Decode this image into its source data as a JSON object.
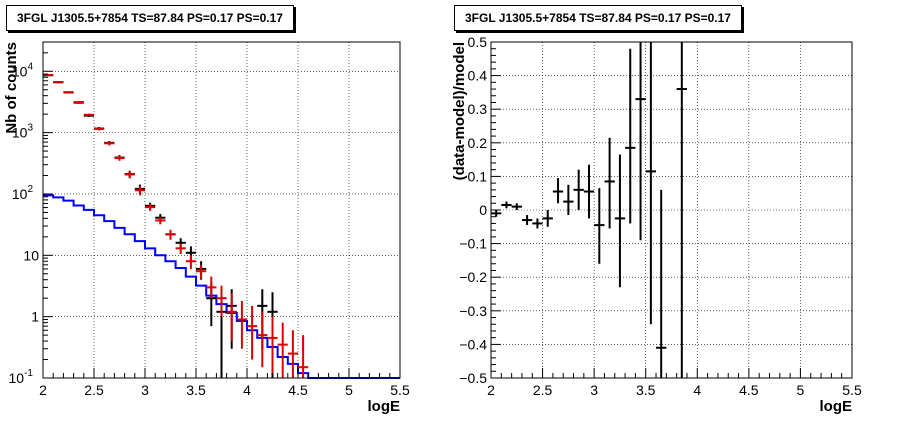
{
  "chart_data": [
    {
      "type": "line",
      "title": "3FGL J1305.5+7854 TS=87.84 PS=0.17 PS=0.17",
      "xlabel": "logE",
      "ylabel": "Nb of counts",
      "xlim": [
        2,
        5.5
      ],
      "ylim": [
        0.1,
        30000
      ],
      "yscale": "log",
      "grid": true,
      "x_ticks": [
        "2",
        "2.5",
        "3",
        "3.5",
        "4",
        "4.5",
        "5",
        "5.5"
      ],
      "y_ticks": [
        {
          "value": 0.1,
          "label": "10",
          "exp": "-1"
        },
        {
          "value": 1,
          "label": "1",
          "exp": ""
        },
        {
          "value": 10,
          "label": "10",
          "exp": ""
        },
        {
          "value": 100,
          "label": "10",
          "exp": "2"
        },
        {
          "value": 1000,
          "label": "10",
          "exp": "3"
        },
        {
          "value": 10000,
          "label": "10",
          "exp": "4"
        }
      ],
      "bin_edges": [
        2.0,
        2.1,
        2.2,
        2.3,
        2.4,
        2.5,
        2.6,
        2.7,
        2.8,
        2.9,
        3.0,
        3.1,
        3.2,
        3.3,
        3.4,
        3.5,
        3.6,
        3.7,
        3.8,
        3.9,
        4.0,
        4.1,
        4.2,
        4.3,
        4.4,
        4.5,
        4.6,
        4.7,
        4.8,
        4.9,
        5.0,
        5.1,
        5.2,
        5.3,
        5.4,
        5.5
      ],
      "series": [
        {
          "style": "step",
          "color": "#0000ff",
          "values": [
            95,
            88,
            78,
            65,
            55,
            45,
            36,
            28,
            22,
            17,
            13,
            10,
            8,
            6.2,
            4.5,
            3.2,
            2.2,
            1.6,
            1.15,
            0.85,
            0.6,
            0.45,
            0.32,
            0.22,
            0.17,
            0.12,
            0.1,
            0.1,
            0.1,
            0.1,
            0.1,
            0.1,
            0.1,
            0.1,
            0.1
          ]
        },
        {
          "style": "errorbar",
          "color": "#000000",
          "points": [
            {
              "x": 2.05,
              "y": 8600,
              "lo": 8410,
              "hi": 8790
            },
            {
              "x": 2.15,
              "y": 6650,
              "lo": 6480,
              "hi": 6820
            },
            {
              "x": 2.25,
              "y": 4550,
              "lo": 4410,
              "hi": 4690
            },
            {
              "x": 2.35,
              "y": 3080,
              "lo": 2970,
              "hi": 3190
            },
            {
              "x": 2.45,
              "y": 1890,
              "lo": 1800,
              "hi": 1980
            },
            {
              "x": 2.55,
              "y": 1165,
              "lo": 1095,
              "hi": 1235
            },
            {
              "x": 2.65,
              "y": 681,
              "lo": 630,
              "hi": 732
            },
            {
              "x": 2.75,
              "y": 392,
              "lo": 353,
              "hi": 431
            },
            {
              "x": 2.85,
              "y": 211,
              "lo": 183,
              "hi": 239
            },
            {
              "x": 2.95,
              "y": 121,
              "lo": 100,
              "hi": 142
            },
            {
              "x": 3.05,
              "y": 64,
              "lo": 56,
              "hi": 72
            },
            {
              "x": 3.15,
              "y": 41,
              "lo": 35,
              "hi": 47
            },
            {
              "x": 3.25,
              "y": 22,
              "lo": 18,
              "hi": 26
            },
            {
              "x": 3.35,
              "y": 16,
              "lo": 13,
              "hi": 19
            },
            {
              "x": 3.45,
              "y": 11,
              "lo": 8,
              "hi": 14
            },
            {
              "x": 3.55,
              "y": 6,
              "lo": 4,
              "hi": 8
            },
            {
              "x": 3.65,
              "y": 2,
              "lo": 0.7,
              "hi": 3.4
            },
            {
              "x": 3.75,
              "y": 1.2,
              "lo": 0.1,
              "hi": 2.5
            },
            {
              "x": 3.85,
              "y": 1.5,
              "lo": 0.3,
              "hi": 2.8
            },
            {
              "x": 4.15,
              "y": 1.5,
              "lo": 0.3,
              "hi": 2.8
            },
            {
              "x": 4.25,
              "y": 1.2,
              "lo": 0.1,
              "hi": 2.5
            }
          ]
        },
        {
          "style": "errorbar",
          "color": "#dd0000",
          "points": [
            {
              "x": 2.05,
              "y": 8700,
              "lo": 8520,
              "hi": 8880
            },
            {
              "x": 2.15,
              "y": 6600,
              "lo": 6440,
              "hi": 6760
            },
            {
              "x": 2.25,
              "y": 4500,
              "lo": 4370,
              "hi": 4630
            },
            {
              "x": 2.35,
              "y": 3150,
              "lo": 3040,
              "hi": 3260
            },
            {
              "x": 2.45,
              "y": 1950,
              "lo": 1860,
              "hi": 2040
            },
            {
              "x": 2.55,
              "y": 1150,
              "lo": 1080,
              "hi": 1220
            },
            {
              "x": 2.65,
              "y": 670,
              "lo": 620,
              "hi": 720
            },
            {
              "x": 2.75,
              "y": 385,
              "lo": 347,
              "hi": 423
            },
            {
              "x": 2.85,
              "y": 208,
              "lo": 180,
              "hi": 236
            },
            {
              "x": 2.95,
              "y": 115,
              "lo": 95,
              "hi": 135
            },
            {
              "x": 3.05,
              "y": 61,
              "lo": 53,
              "hi": 69
            },
            {
              "x": 3.15,
              "y": 37,
              "lo": 32,
              "hi": 42
            },
            {
              "x": 3.25,
              "y": 22,
              "lo": 18,
              "hi": 26
            },
            {
              "x": 3.35,
              "y": 13,
              "lo": 10.5,
              "hi": 15.5
            },
            {
              "x": 3.45,
              "y": 8,
              "lo": 6,
              "hi": 10
            },
            {
              "x": 3.55,
              "y": 5.5,
              "lo": 4,
              "hi": 7
            },
            {
              "x": 3.65,
              "y": 3,
              "lo": 2,
              "hi": 4.5
            },
            {
              "x": 3.75,
              "y": 2,
              "lo": 1,
              "hi": 3.2
            },
            {
              "x": 3.85,
              "y": 1.2,
              "lo": 0.4,
              "hi": 2.4
            },
            {
              "x": 3.95,
              "y": 0.9,
              "lo": 0.3,
              "hi": 1.8
            },
            {
              "x": 4.05,
              "y": 0.7,
              "lo": 0.2,
              "hi": 1.5
            },
            {
              "x": 4.15,
              "y": 0.5,
              "lo": 0.15,
              "hi": 1.2
            },
            {
              "x": 4.25,
              "y": 0.45,
              "lo": 0.12,
              "hi": 1.0
            },
            {
              "x": 4.35,
              "y": 0.35,
              "lo": 0.1,
              "hi": 0.8
            },
            {
              "x": 4.45,
              "y": 0.25,
              "lo": 0.1,
              "hi": 0.6
            },
            {
              "x": 4.55,
              "y": 0.15,
              "lo": 0.1,
              "hi": 0.5
            }
          ]
        }
      ]
    },
    {
      "type": "scatter",
      "title": "3FGL J1305.5+7854 TS=87.84 PS=0.17 PS=0.17",
      "xlabel": "logE",
      "ylabel": "(data-model)/model",
      "xlim": [
        2,
        5.5
      ],
      "ylim": [
        -0.5,
        0.5
      ],
      "grid": true,
      "x_ticks": [
        "2",
        "2.5",
        "3",
        "3.5",
        "4",
        "4.5",
        "5",
        "5.5"
      ],
      "y_ticks": [
        "−0.5",
        "−0.4",
        "−0.3",
        "−0.2",
        "−0.1",
        "0",
        "0.1",
        "0.2",
        "0.3",
        "0.4",
        "0.5"
      ],
      "series": [
        {
          "style": "errorbar",
          "color": "#000000",
          "points": [
            {
              "x": 2.05,
              "y": -0.01,
              "lo": -0.02,
              "hi": 0.0
            },
            {
              "x": 2.15,
              "y": 0.015,
              "lo": 0.005,
              "hi": 0.025
            },
            {
              "x": 2.25,
              "y": 0.01,
              "lo": 0.0,
              "hi": 0.02
            },
            {
              "x": 2.35,
              "y": -0.03,
              "lo": -0.045,
              "hi": -0.015
            },
            {
              "x": 2.45,
              "y": -0.04,
              "lo": -0.055,
              "hi": -0.025
            },
            {
              "x": 2.55,
              "y": -0.025,
              "lo": -0.05,
              "hi": 0.0
            },
            {
              "x": 2.65,
              "y": 0.055,
              "lo": 0.02,
              "hi": 0.095
            },
            {
              "x": 2.75,
              "y": 0.025,
              "lo": -0.015,
              "hi": 0.075
            },
            {
              "x": 2.85,
              "y": 0.06,
              "lo": 0.0,
              "hi": 0.12
            },
            {
              "x": 2.95,
              "y": 0.055,
              "lo": -0.025,
              "hi": 0.135
            },
            {
              "x": 3.05,
              "y": -0.045,
              "lo": -0.16,
              "hi": 0.065
            },
            {
              "x": 3.15,
              "y": 0.085,
              "lo": -0.055,
              "hi": 0.215
            },
            {
              "x": 3.25,
              "y": -0.025,
              "lo": -0.23,
              "hi": 0.165
            },
            {
              "x": 3.35,
              "y": 0.185,
              "lo": -0.04,
              "hi": 0.48
            },
            {
              "x": 3.45,
              "y": 0.33,
              "lo": -0.09,
              "hi": 0.5
            },
            {
              "x": 3.55,
              "y": 0.115,
              "lo": -0.34,
              "hi": 0.5
            },
            {
              "x": 3.65,
              "y": -0.41,
              "lo": -0.5,
              "hi": 0.06
            },
            {
              "x": 3.85,
              "y": 0.36,
              "lo": -0.5,
              "hi": 0.5
            }
          ]
        }
      ]
    }
  ]
}
